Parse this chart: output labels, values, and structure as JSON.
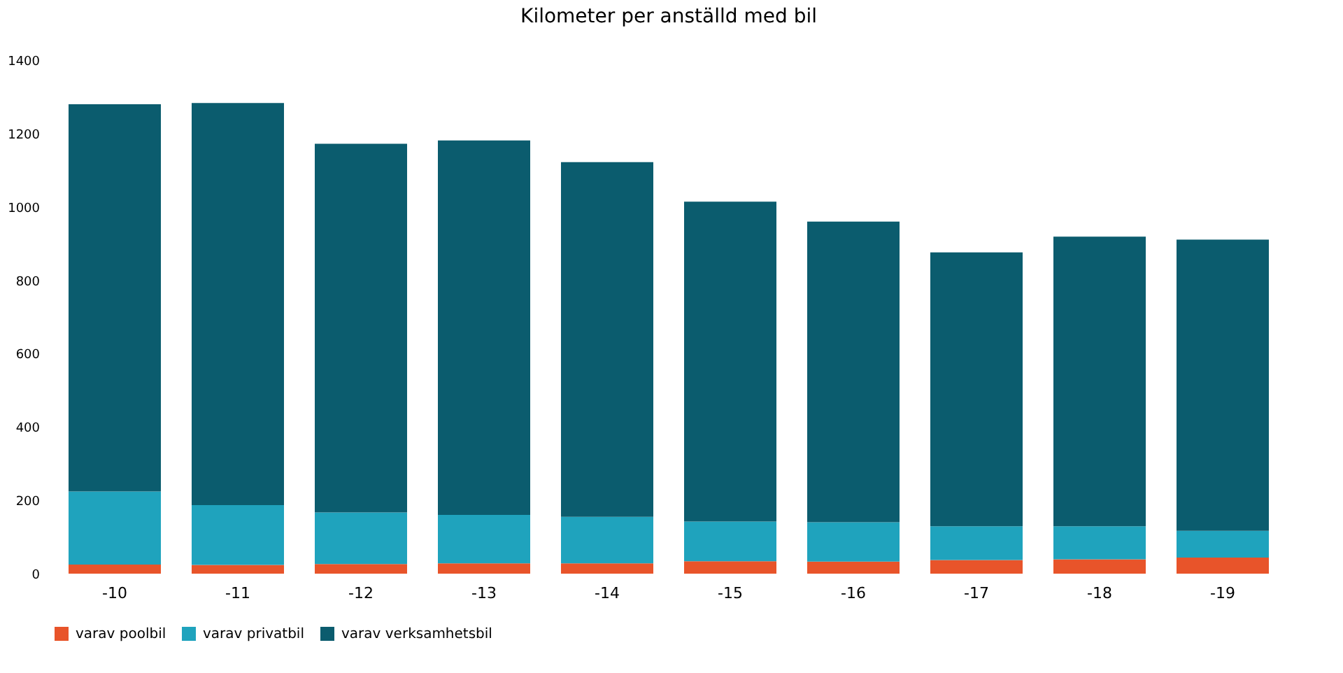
{
  "chart_data": {
    "type": "bar",
    "title": "Kilometer per anställd med bil",
    "stacked": true,
    "categories": [
      "-10",
      "-11",
      "-12",
      "-13",
      "-14",
      "-15",
      "-16",
      "-17",
      "-18",
      "-19"
    ],
    "series": [
      {
        "name": "varav poolbil",
        "color": "#e8542a",
        "values": [
          25,
          24,
          26,
          28,
          28,
          34,
          33,
          37,
          39,
          44
        ]
      },
      {
        "name": "varav privatbil",
        "color": "#1fa3bd",
        "values": [
          199,
          163,
          141,
          132,
          127,
          108,
          107,
          92,
          90,
          73
        ]
      },
      {
        "name": "varav verksamhetsbil",
        "color": "#0b5c6e",
        "values": [
          1056,
          1096,
          1005,
          1021,
          967,
          872,
          820,
          747,
          790,
          794
        ]
      }
    ],
    "ylim": [
      0,
      1400
    ],
    "yticks": [
      0,
      200,
      400,
      600,
      800,
      1000,
      1200,
      1400
    ],
    "grid": false,
    "legend": "bottom"
  }
}
